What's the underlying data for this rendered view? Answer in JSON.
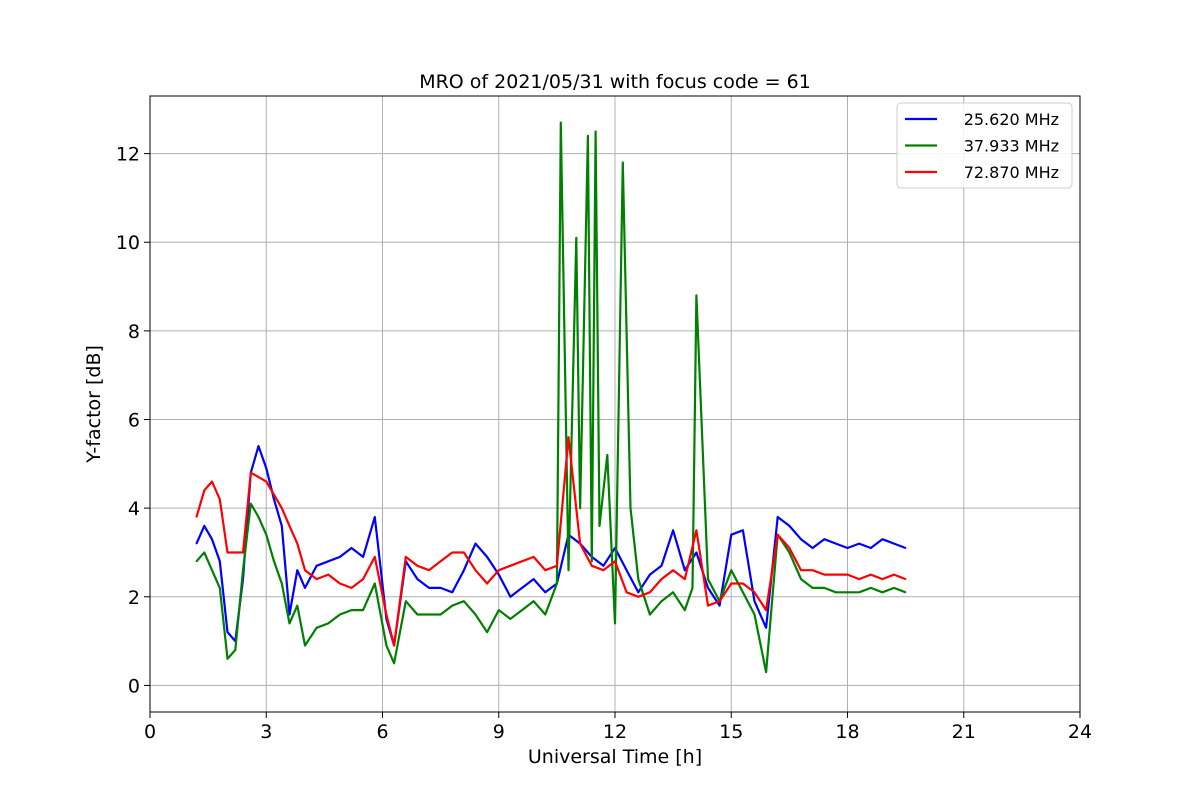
{
  "chart_data": {
    "type": "line",
    "title": "MRO of 2021/05/31 with focus code = 61",
    "xlabel": "Universal Time [h]",
    "ylabel": "Y-factor [dB]",
    "xlim": [
      0,
      24
    ],
    "ylim": [
      -0.6,
      13.3
    ],
    "xticks": [
      0,
      3,
      6,
      9,
      12,
      15,
      18,
      21,
      24
    ],
    "xtick_labels": [
      "0",
      "3",
      "6",
      "9",
      "12",
      "15",
      "18",
      "21",
      "24"
    ],
    "yticks": [
      0,
      2,
      4,
      6,
      8,
      10,
      12
    ],
    "ytick_labels": [
      "0",
      "2",
      "4",
      "6",
      "8",
      "10",
      "12"
    ],
    "grid": true,
    "legend_position": "top-right",
    "series": [
      {
        "name": "25.620 MHz",
        "color": "#0000ff",
        "x": [
          1.2,
          1.4,
          1.6,
          1.8,
          2.0,
          2.2,
          2.4,
          2.6,
          2.8,
          3.0,
          3.2,
          3.4,
          3.6,
          3.8,
          4.0,
          4.3,
          4.6,
          4.9,
          5.2,
          5.5,
          5.8,
          6.1,
          6.3,
          6.6,
          6.9,
          7.2,
          7.5,
          7.8,
          8.1,
          8.4,
          8.7,
          9.0,
          9.3,
          9.6,
          9.9,
          10.2,
          10.5,
          10.8,
          11.1,
          11.4,
          11.7,
          12.0,
          12.3,
          12.6,
          12.9,
          13.2,
          13.5,
          13.8,
          14.1,
          14.4,
          14.7,
          15.0,
          15.3,
          15.6,
          15.9,
          16.2,
          16.5,
          16.8,
          17.1,
          17.4,
          17.7,
          18.0,
          18.3,
          18.6,
          18.9,
          19.2,
          19.5
        ],
        "y": [
          3.2,
          3.6,
          3.3,
          2.8,
          1.2,
          1.0,
          2.4,
          4.8,
          5.4,
          4.9,
          4.2,
          3.6,
          1.6,
          2.6,
          2.2,
          2.7,
          2.8,
          2.9,
          3.1,
          2.9,
          3.8,
          1.5,
          0.9,
          2.8,
          2.4,
          2.2,
          2.2,
          2.1,
          2.6,
          3.2,
          2.9,
          2.5,
          2.0,
          2.2,
          2.4,
          2.1,
          2.3,
          3.4,
          3.2,
          2.9,
          2.7,
          3.1,
          2.6,
          2.1,
          2.5,
          2.7,
          3.5,
          2.6,
          3.0,
          2.2,
          1.8,
          3.4,
          3.5,
          1.9,
          1.3,
          3.8,
          3.6,
          3.3,
          3.1,
          3.3,
          3.2,
          3.1,
          3.2,
          3.1,
          3.3,
          3.2,
          3.1
        ]
      },
      {
        "name": "37.933 MHz",
        "color": "#008000",
        "x": [
          1.2,
          1.4,
          1.6,
          1.8,
          2.0,
          2.2,
          2.4,
          2.6,
          2.8,
          3.0,
          3.2,
          3.4,
          3.6,
          3.8,
          4.0,
          4.3,
          4.6,
          4.9,
          5.2,
          5.5,
          5.8,
          6.1,
          6.3,
          6.6,
          6.9,
          7.2,
          7.5,
          7.8,
          8.1,
          8.4,
          8.7,
          9.0,
          9.3,
          9.6,
          9.9,
          10.2,
          10.5,
          10.6,
          10.8,
          11.0,
          11.1,
          11.3,
          11.4,
          11.5,
          11.6,
          11.8,
          12.0,
          12.2,
          12.4,
          12.6,
          12.9,
          13.2,
          13.5,
          13.8,
          14.0,
          14.1,
          14.4,
          14.7,
          15.0,
          15.3,
          15.6,
          15.9,
          16.2,
          16.5,
          16.8,
          17.1,
          17.4,
          17.7,
          18.0,
          18.3,
          18.6,
          18.9,
          19.2,
          19.5
        ],
        "y": [
          2.8,
          3.0,
          2.6,
          2.2,
          0.6,
          0.8,
          2.6,
          4.1,
          3.8,
          3.4,
          2.8,
          2.3,
          1.4,
          1.8,
          0.9,
          1.3,
          1.4,
          1.6,
          1.7,
          1.7,
          2.3,
          0.9,
          0.5,
          1.9,
          1.6,
          1.6,
          1.6,
          1.8,
          1.9,
          1.6,
          1.2,
          1.7,
          1.5,
          1.7,
          1.9,
          1.6,
          2.3,
          12.7,
          2.6,
          10.1,
          4.0,
          12.4,
          2.8,
          12.5,
          3.6,
          5.2,
          1.4,
          11.8,
          4.0,
          2.4,
          1.6,
          1.9,
          2.1,
          1.7,
          2.2,
          8.8,
          2.4,
          1.9,
          2.6,
          2.1,
          1.6,
          0.3,
          3.4,
          3.0,
          2.4,
          2.2,
          2.2,
          2.1,
          2.1,
          2.1,
          2.2,
          2.1,
          2.2,
          2.1
        ]
      },
      {
        "name": "72.870 MHz",
        "color": "#ff0000",
        "x": [
          1.2,
          1.4,
          1.6,
          1.8,
          2.0,
          2.2,
          2.4,
          2.6,
          2.8,
          3.0,
          3.2,
          3.4,
          3.6,
          3.8,
          4.0,
          4.3,
          4.6,
          4.9,
          5.2,
          5.5,
          5.8,
          6.1,
          6.3,
          6.6,
          6.9,
          7.2,
          7.5,
          7.8,
          8.1,
          8.4,
          8.7,
          9.0,
          9.3,
          9.6,
          9.9,
          10.2,
          10.5,
          10.8,
          11.1,
          11.4,
          11.7,
          12.0,
          12.3,
          12.6,
          12.9,
          13.2,
          13.5,
          13.8,
          14.1,
          14.4,
          14.7,
          15.0,
          15.3,
          15.6,
          15.9,
          16.2,
          16.5,
          16.8,
          17.1,
          17.4,
          17.7,
          18.0,
          18.3,
          18.6,
          18.9,
          19.2,
          19.5
        ],
        "y": [
          3.8,
          4.4,
          4.6,
          4.2,
          3.0,
          3.0,
          3.0,
          4.8,
          4.7,
          4.6,
          4.3,
          4.0,
          3.6,
          3.2,
          2.6,
          2.4,
          2.5,
          2.3,
          2.2,
          2.4,
          2.9,
          1.6,
          0.9,
          2.9,
          2.7,
          2.6,
          2.8,
          3.0,
          3.0,
          2.6,
          2.3,
          2.6,
          2.7,
          2.8,
          2.9,
          2.6,
          2.7,
          5.6,
          3.2,
          2.7,
          2.6,
          2.8,
          2.1,
          2.0,
          2.1,
          2.4,
          2.6,
          2.4,
          3.5,
          1.8,
          1.9,
          2.3,
          2.3,
          2.1,
          1.7,
          3.4,
          3.1,
          2.6,
          2.6,
          2.5,
          2.5,
          2.5,
          2.4,
          2.5,
          2.4,
          2.5,
          2.4
        ]
      }
    ]
  }
}
